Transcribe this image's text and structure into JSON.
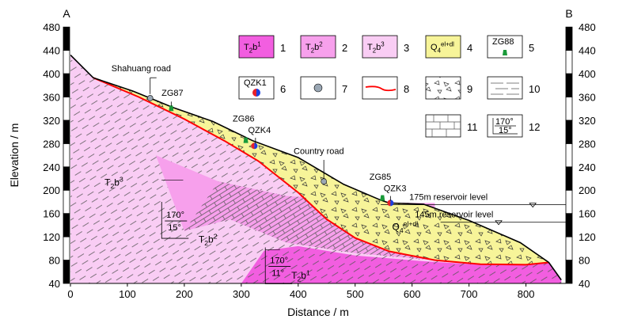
{
  "corners": {
    "left": "A",
    "right": "B"
  },
  "axes": {
    "xlabel": "Distance / m",
    "ylabel": "Elevation / m",
    "x_ticks": [
      0,
      100,
      200,
      300,
      400,
      500,
      600,
      700,
      800
    ],
    "y_ticks": [
      40,
      80,
      120,
      160,
      200,
      240,
      280,
      320,
      360,
      400,
      440,
      480
    ],
    "xlim": [
      0,
      870
    ],
    "ylim": [
      40,
      480
    ]
  },
  "legend": [
    {
      "num": "1",
      "base": "T",
      "sub": "2",
      "mid": "b",
      "sup": "1",
      "color": "#f25ee0"
    },
    {
      "num": "2",
      "base": "T",
      "sub": "2",
      "mid": "b",
      "sup": "2",
      "color": "#f7a0ec"
    },
    {
      "num": "3",
      "base": "T",
      "sub": "2",
      "mid": "b",
      "sup": "3",
      "color": "#f9cdf4"
    },
    {
      "num": "4",
      "base": "Q",
      "sub": "4",
      "mid": "",
      "sup": "el+dl",
      "color": "#f7f499"
    },
    {
      "num": "5",
      "text": "ZG88",
      "icon": "borehole-green-icon"
    },
    {
      "num": "6",
      "text": "QZK1",
      "icon": "borehole-redblue-icon"
    },
    {
      "num": "7",
      "icon": "landmark-icon"
    },
    {
      "num": "8",
      "icon": "red-boundary-line"
    },
    {
      "num": "9",
      "icon": "gravel-pattern"
    },
    {
      "num": "10",
      "icon": "dash-pattern"
    },
    {
      "num": "11",
      "icon": "brick-pattern"
    },
    {
      "num": "12",
      "text_top": "170°",
      "text_bottom": "15°",
      "icon": "attitude-box"
    }
  ],
  "labels": {
    "road1": "Shahuang road",
    "road2": "Country road",
    "zg87": "ZG87",
    "zg86": "ZG86",
    "qzk4": "QZK4",
    "zg85": "ZG85",
    "qzk3": "QZK3",
    "res175": "175m reservoir  level",
    "res145": "145m reservoir level",
    "t2b3": {
      "base": "T",
      "sub": "2",
      "mid": "b",
      "sup": "3"
    },
    "t2b2": {
      "base": "T",
      "sub": "2",
      "mid": "b",
      "sup": "2"
    },
    "t2b1": {
      "base": "T",
      "sub": "2",
      "mid": "b",
      "sup": "1"
    },
    "q4": {
      "base": "Q",
      "sub": "4",
      "sup": "el+dl"
    },
    "att1_top": "170°",
    "att1_bottom": "15°",
    "att2_top": "170°",
    "att2_bottom": "11°"
  },
  "colors": {
    "t2b1": "#f25ee0",
    "t2b2": "#f7a0ec",
    "t2b3": "#f9cdf4",
    "q4": "#f7f499",
    "boundary": "#ff0000",
    "borehole_green": "#1a9a3a",
    "borehole_red": "#e8202a",
    "borehole_blue": "#1d3fe0"
  }
}
